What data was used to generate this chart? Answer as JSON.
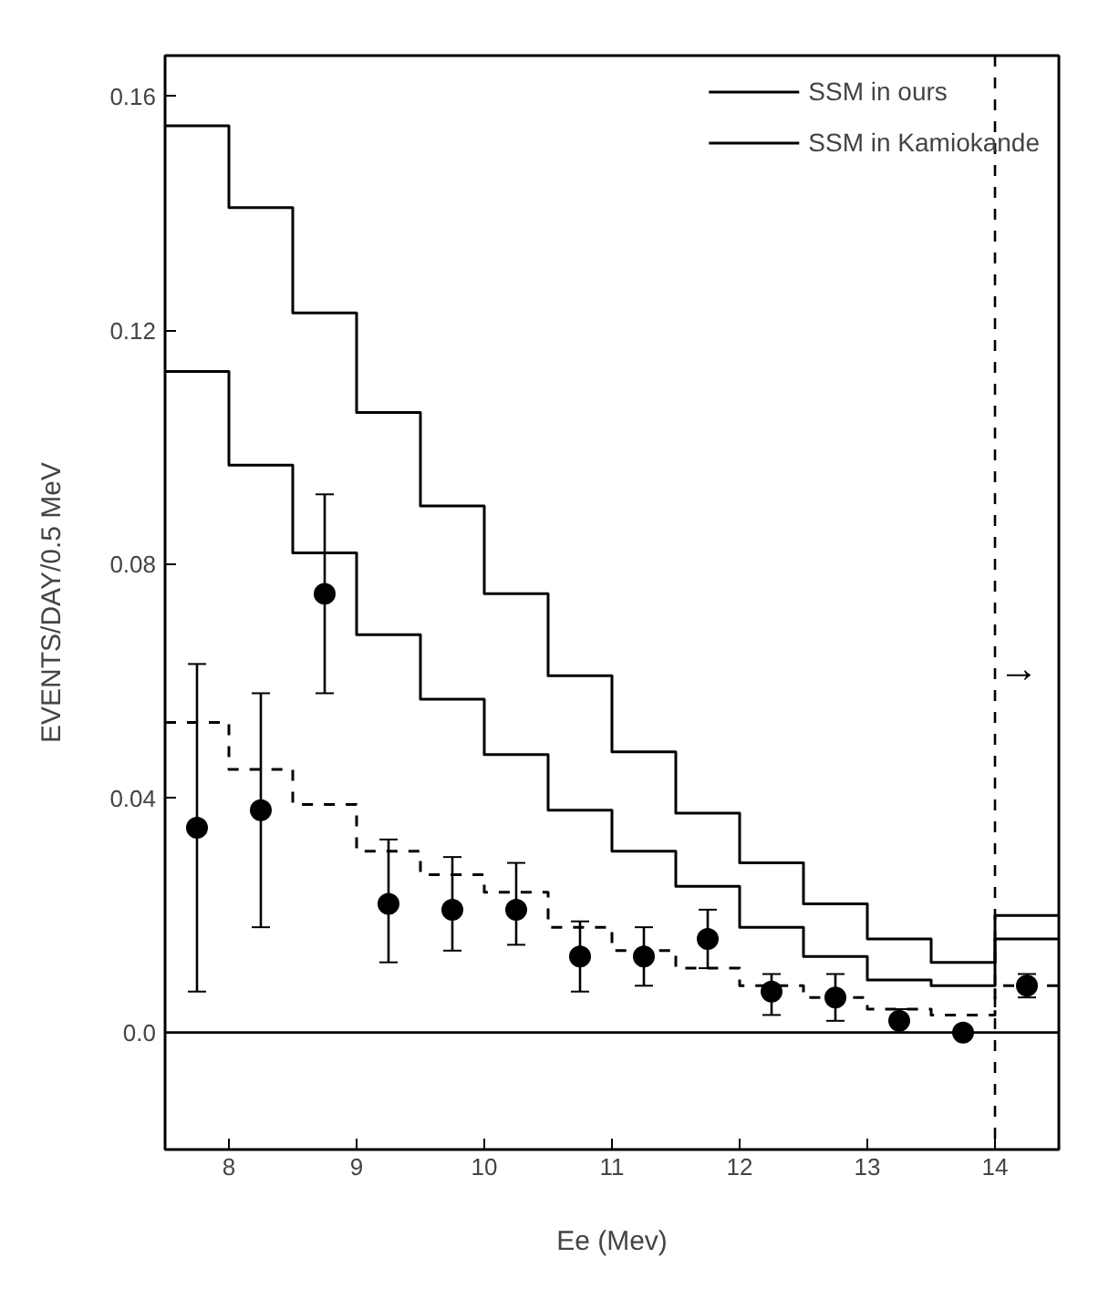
{
  "chart_data": {
    "type": "step",
    "xlabel": "Ee (Mev)",
    "ylabel": "EVENTS/DAY/0.5 MeV",
    "xlim": [
      7.5,
      14.5
    ],
    "ylim": [
      -0.02,
      0.167
    ],
    "xticks": [
      8,
      9,
      10,
      11,
      12,
      13,
      14
    ],
    "yticks": [
      {
        "value": 0,
        "label": "0.0"
      },
      0.04,
      0.08,
      0.12,
      0.16
    ],
    "grid": false,
    "legend": "top right",
    "line_style": "solid",
    "series": [
      {
        "name": "SSM in ours",
        "color": "#000000",
        "x": [
          7.5,
          8.0,
          8.5,
          9.0,
          9.5,
          10.0,
          10.5,
          11.0,
          11.5,
          12.0,
          12.5,
          13.0,
          13.5,
          14.0,
          14.5
        ],
        "values": [
          0.155,
          0.141,
          0.123,
          0.106,
          0.09,
          0.075,
          0.061,
          0.048,
          0.0375,
          0.029,
          0.022,
          0.016,
          0.012,
          0.02,
          0.02
        ]
      },
      {
        "name": "SSM in Kamiokande",
        "color": "#000000",
        "x": [
          7.5,
          8.0,
          8.5,
          9.0,
          9.5,
          10.0,
          10.5,
          11.0,
          11.5,
          12.0,
          12.5,
          13.0,
          13.5,
          14.0,
          14.5
        ],
        "values": [
          0.113,
          0.097,
          0.082,
          0.068,
          0.057,
          0.0475,
          0.038,
          0.031,
          0.025,
          0.018,
          0.013,
          0.009,
          0.008,
          0.016,
          0.016
        ]
      },
      {
        "line_style": "dashed",
        "color": "#000000",
        "x": [
          7.5,
          8.0,
          8.5,
          9.0,
          9.5,
          10.0,
          10.5,
          11.0,
          11.5,
          12.0,
          12.5,
          13.0,
          13.5,
          14.0,
          14.5
        ],
        "values": [
          0.053,
          0.045,
          0.039,
          0.031,
          0.027,
          0.024,
          0.018,
          0.014,
          0.011,
          0.008,
          0.006,
          0.004,
          0.003,
          0.008,
          0.008
        ]
      },
      {
        "type": "scatter",
        "marker": "circle",
        "color": "#000000",
        "x": [
          7.75,
          8.25,
          8.75,
          9.25,
          9.75,
          10.25,
          10.75,
          11.25,
          11.75,
          12.25,
          12.75,
          13.25,
          13.75,
          14.25
        ],
        "values": [
          0.035,
          0.038,
          0.075,
          0.022,
          0.021,
          0.021,
          0.013,
          0.013,
          0.016,
          0.007,
          0.006,
          0.002,
          0.0,
          0.008
        ],
        "errors": [
          [
            0.007,
            0.063
          ],
          [
            0.018,
            0.058
          ],
          [
            0.058,
            0.092
          ],
          [
            0.012,
            0.033
          ],
          [
            0.014,
            0.03
          ],
          [
            0.015,
            0.029
          ],
          [
            0.007,
            0.019
          ],
          [
            0.008,
            0.018
          ],
          [
            0.011,
            0.021
          ],
          [
            0.003,
            0.01
          ],
          [
            0.002,
            0.01
          ],
          [
            0.0,
            0.004
          ],
          null,
          [
            0.006,
            0.01
          ]
        ]
      }
    ],
    "ref_lines": [
      {
        "axis": "y",
        "value": 0,
        "color": "#000000",
        "line_style": "solid"
      },
      {
        "axis": "x",
        "value": 14,
        "color": "#000000",
        "line_style": "dashed",
        "label": "→"
      }
    ]
  }
}
